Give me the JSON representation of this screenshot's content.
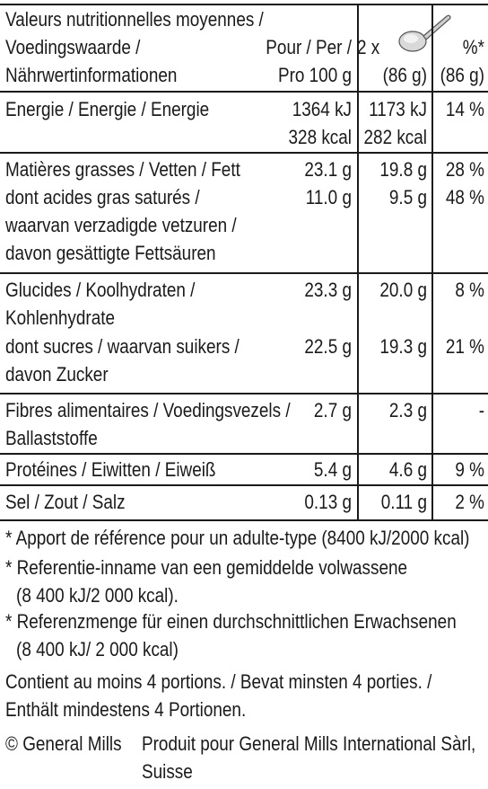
{
  "header": {
    "title_line1": "Valeurs nutritionnelles moyennes /",
    "title_line2": "Voedingswaarde /",
    "title_line3": "Nährwertinformationen",
    "per100_line1": "Pour / Per /",
    "per100_line2": "Pro 100 g",
    "portion_line1": "2 x",
    "portion_line2": "(86 g)",
    "percent_line1": "%*",
    "percent_line2": "(86 g)",
    "portion_icon": "spoon-icon"
  },
  "rows": {
    "energy": {
      "label": "Energie / Energie / Energie",
      "per100_kj": "1364 kJ",
      "per100_kcal": "328 kcal",
      "portion_kj": "1173 kJ",
      "portion_kcal": "282 kcal",
      "ri": "14 %"
    },
    "fat": {
      "label": "Matières grasses / Vetten / Fett",
      "per100": "23.1 g",
      "portion": "19.8 g",
      "ri": "28 %"
    },
    "saturates": {
      "label1": "dont acides gras saturés /",
      "label2": "waarvan verzadigde vetzuren /",
      "label3": "davon gesättigte Fettsäuren",
      "per100": "11.0 g",
      "portion": "9.5 g",
      "ri": "48 %"
    },
    "carbs": {
      "label1": "Glucides / Koolhydraten /",
      "label2": "Kohlenhydrate",
      "per100": "23.3 g",
      "portion": "20.0 g",
      "ri": "8 %"
    },
    "sugars": {
      "label1": "dont sucres / waarvan suikers /",
      "label2": "davon Zucker",
      "per100": "22.5 g",
      "portion": "19.3 g",
      "ri": "21 %"
    },
    "fibre": {
      "label1": "Fibres alimentaires / Voedingsvezels /",
      "label2": "Ballaststoffe",
      "per100": "2.7 g",
      "portion": "2.3 g",
      "ri": "-"
    },
    "protein": {
      "label": "Protéines / Eiwitten / Eiweiß",
      "per100": "5.4 g",
      "portion": "4.6 g",
      "ri": "9 %"
    },
    "salt": {
      "label": "Sel / Zout / Salz",
      "per100": "0.13 g",
      "portion": "0.11 g",
      "ri": "2 %"
    }
  },
  "footnotes": {
    "fr": "* Apport de référence pour un adulte-type (8400 kJ/2000 kcal)",
    "nl1": "* Referentie-inname van een gemiddelde volwassene",
    "nl2": "(8 400 kJ/2 000 kcal).",
    "de1": "* Referenzmenge für einen durchschnittlichen Erwachsenen",
    "de2": "(8 400 kJ/ 2 000 kcal)",
    "portions1": "Contient au moins 4 portions. / Bevat minsten 4 porties. /",
    "portions2": "Enthält mindestens 4 Portionen.",
    "copyright": "© General Mills",
    "producer1": "Produit pour General Mills International Sàrl,",
    "producer2": "Suisse"
  }
}
